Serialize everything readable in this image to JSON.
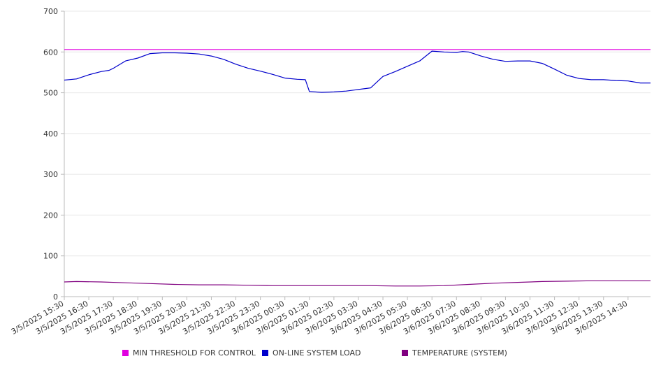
{
  "chart_data": {
    "type": "line",
    "ylim": [
      0,
      700
    ],
    "yticks": [
      0,
      100,
      200,
      300,
      400,
      500,
      600,
      700
    ],
    "xlim": [
      "3/5/2025 15:30",
      "3/6/2025 15:25"
    ],
    "xticks": [
      "3/5/2025 15:30",
      "3/5/2025 16:30",
      "3/5/2025 17:30",
      "3/5/2025 18:30",
      "3/5/2025 19:30",
      "3/5/2025 20:30",
      "3/5/2025 21:30",
      "3/5/2025 22:30",
      "3/5/2025 23:30",
      "3/6/2025 00:30",
      "3/6/2025 01:30",
      "3/6/2025 02:30",
      "3/6/2025 03:30",
      "3/6/2025 04:30",
      "3/6/2025 05:30",
      "3/6/2025 06:30",
      "3/6/2025 07:30",
      "3/6/2025 08:30",
      "3/6/2025 09:30",
      "3/6/2025 10:30",
      "3/6/2025 11:30",
      "3/6/2025 12:30",
      "3/6/2025 13:30",
      "3/6/2025 14:30"
    ],
    "grid": true,
    "legend_position": "bottom",
    "series": [
      {
        "name": "MIN THRESHOLD FOR CONTROL",
        "color": "#e000e0",
        "x": [
          "3/5/2025 15:30",
          "3/6/2025 15:25"
        ],
        "values": [
          606,
          606
        ]
      },
      {
        "name": "ON-LINE SYSTEM LOAD",
        "color": "#0000cc",
        "x": [
          "3/5/2025 15:30",
          "3/5/2025 16:00",
          "3/5/2025 16:30",
          "3/5/2025 17:00",
          "3/5/2025 17:20",
          "3/5/2025 17:30",
          "3/5/2025 18:00",
          "3/5/2025 18:30",
          "3/5/2025 19:00",
          "3/5/2025 19:30",
          "3/5/2025 20:00",
          "3/5/2025 20:30",
          "3/5/2025 21:00",
          "3/5/2025 21:30",
          "3/5/2025 22:00",
          "3/5/2025 22:30",
          "3/5/2025 23:00",
          "3/5/2025 23:30",
          "3/6/2025 00:00",
          "3/6/2025 00:30",
          "3/6/2025 01:00",
          "3/6/2025 01:20",
          "3/6/2025 01:30",
          "3/6/2025 02:00",
          "3/6/2025 02:30",
          "3/6/2025 03:00",
          "3/6/2025 03:30",
          "3/6/2025 04:00",
          "3/6/2025 04:30",
          "3/6/2025 05:00",
          "3/6/2025 05:30",
          "3/6/2025 06:00",
          "3/6/2025 06:30",
          "3/6/2025 07:00",
          "3/6/2025 07:30",
          "3/6/2025 07:45",
          "3/6/2025 08:00",
          "3/6/2025 08:30",
          "3/6/2025 09:00",
          "3/6/2025 09:30",
          "3/6/2025 10:00",
          "3/6/2025 10:30",
          "3/6/2025 11:00",
          "3/6/2025 11:30",
          "3/6/2025 12:00",
          "3/6/2025 12:30",
          "3/6/2025 13:00",
          "3/6/2025 13:30",
          "3/6/2025 14:00",
          "3/6/2025 14:30",
          "3/6/2025 15:00",
          "3/6/2025 15:25"
        ],
        "values": [
          531,
          534,
          544,
          552,
          555,
          560,
          578,
          585,
          596,
          598,
          598,
          597,
          595,
          590,
          582,
          570,
          560,
          553,
          545,
          536,
          533,
          532,
          503,
          501,
          502,
          504,
          508,
          512,
          540,
          552,
          565,
          578,
          602,
          600,
          599,
          601,
          600,
          590,
          582,
          577,
          578,
          578,
          572,
          558,
          543,
          535,
          532,
          532,
          530,
          529,
          524,
          524
        ]
      },
      {
        "name": "TEMPERATURE (SYSTEM)",
        "color": "#800080",
        "x": [
          "3/5/2025 15:30",
          "3/5/2025 16:00",
          "3/5/2025 17:00",
          "3/5/2025 18:00",
          "3/5/2025 19:00",
          "3/5/2025 20:00",
          "3/5/2025 21:00",
          "3/5/2025 22:00",
          "3/5/2025 23:00",
          "3/6/2025 00:00",
          "3/6/2025 01:00",
          "3/6/2025 02:00",
          "3/6/2025 03:00",
          "3/6/2025 04:00",
          "3/6/2025 05:00",
          "3/6/2025 06:00",
          "3/6/2025 07:00",
          "3/6/2025 08:00",
          "3/6/2025 09:00",
          "3/6/2025 10:00",
          "3/6/2025 11:00",
          "3/6/2025 12:00",
          "3/6/2025 13:00",
          "3/6/2025 14:00",
          "3/6/2025 15:25"
        ],
        "values": [
          36,
          37,
          36,
          34,
          32,
          30,
          29,
          29,
          28,
          27,
          27,
          27,
          27,
          27,
          26,
          26,
          27,
          30,
          33,
          35,
          37,
          38,
          39,
          39,
          39
        ]
      }
    ]
  }
}
